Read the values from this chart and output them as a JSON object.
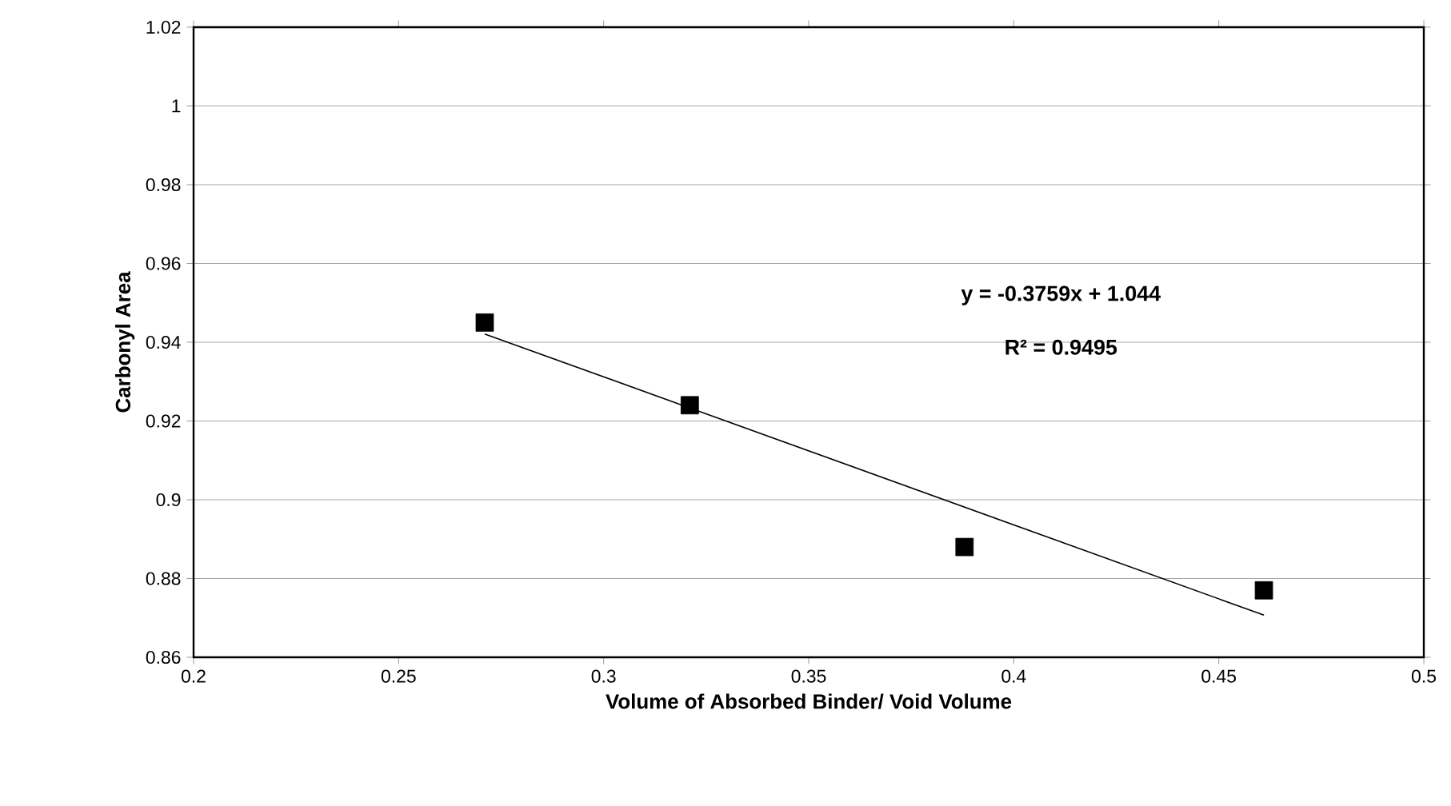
{
  "chart_data": {
    "type": "scatter",
    "xlabel": "Volume of Absorbed Binder/ Void Volume",
    "ylabel": "Carbonyl Area",
    "x": [
      0.271,
      0.321,
      0.388,
      0.461
    ],
    "series": [
      {
        "color": "#000000",
        "marker": "square",
        "values": [
          0.945,
          0.924,
          0.888,
          0.877
        ]
      },
      {
        "type": "line",
        "color": "#000000",
        "marker": "none",
        "x": [
          0.271,
          0.461
        ],
        "values": [
          0.9421,
          0.8707
        ]
      }
    ],
    "xlim": [
      0.2,
      0.5
    ],
    "xticks": [
      0.2,
      0.25,
      0.3,
      0.35,
      0.4,
      0.45,
      0.5
    ],
    "ylim": [
      0.86,
      1.02
    ],
    "yticks": [
      0.86,
      0.88,
      0.9,
      0.92,
      0.94,
      0.96,
      0.98,
      1,
      1.02
    ],
    "grid": "y",
    "annotations": [
      "y = -0.3759x + 1.044",
      "R² = 0.9495"
    ]
  }
}
